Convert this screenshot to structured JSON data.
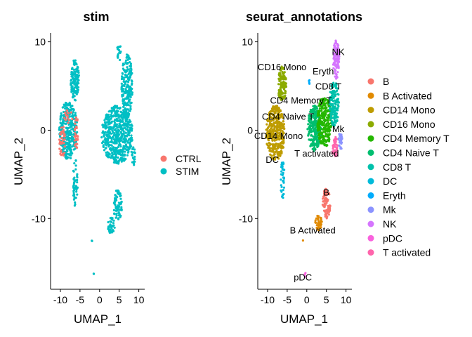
{
  "chart_data": [
    {
      "type": "scatter",
      "title": "stim",
      "xlabel": "UMAP_1",
      "ylabel": "UMAP_2",
      "xlim": [
        -12.5,
        11.5
      ],
      "ylim": [
        -18.0,
        11.0
      ],
      "xticks": [
        -10,
        -5,
        0,
        5,
        10
      ],
      "yticks": [
        -10,
        0,
        10
      ],
      "legend": {
        "position": "right",
        "entries": [
          {
            "label": "CTRL",
            "color": "#F8766D"
          },
          {
            "label": "STIM",
            "color": "#00BFC4"
          }
        ]
      },
      "point_groups": [
        {
          "series": "STIM",
          "color": "#00BFC4",
          "shape": "ellipse",
          "cx": -8,
          "cy": 0,
          "rx": 2.3,
          "ry": 3.3,
          "n": 330
        },
        {
          "series": "STIM",
          "color": "#00BFC4",
          "shape": "ellipse",
          "cx": -6.3,
          "cy": 5.7,
          "rx": 1.1,
          "ry": 2.4,
          "n": 120
        },
        {
          "series": "STIM",
          "color": "#00BFC4",
          "shape": "ellipse",
          "cx": -6.2,
          "cy": -6.0,
          "rx": 0.6,
          "ry": 2.7,
          "n": 50
        },
        {
          "series": "STIM",
          "color": "#00BFC4",
          "shape": "ellipse",
          "cx": 4.5,
          "cy": -0.5,
          "rx": 4.0,
          "ry": 3.3,
          "n": 560
        },
        {
          "series": "STIM",
          "color": "#00BFC4",
          "shape": "ellipse",
          "cx": 7.0,
          "cy": 5.0,
          "rx": 1.4,
          "ry": 3.6,
          "n": 200
        },
        {
          "series": "STIM",
          "color": "#00BFC4",
          "shape": "ellipse",
          "cx": 8.6,
          "cy": -2.8,
          "rx": 0.5,
          "ry": 1.3,
          "n": 20
        },
        {
          "series": "STIM",
          "color": "#00BFC4",
          "shape": "ellipse",
          "cx": 4.6,
          "cy": -8.5,
          "rx": 1.1,
          "ry": 1.8,
          "n": 80
        },
        {
          "series": "STIM",
          "color": "#00BFC4",
          "shape": "ellipse",
          "cx": 3.0,
          "cy": -10.8,
          "rx": 0.9,
          "ry": 0.9,
          "n": 40
        },
        {
          "series": "STIM",
          "color": "#00BFC4",
          "shape": "ellipse",
          "cx": 5.0,
          "cy": 8.8,
          "rx": 0.6,
          "ry": 1.0,
          "n": 20
        },
        {
          "series": "STIM",
          "color": "#00BFC4",
          "shape": "ellipse",
          "cx": -2.0,
          "cy": -12.5,
          "rx": 0.15,
          "ry": 0.2,
          "n": 2
        },
        {
          "series": "STIM",
          "color": "#00BFC4",
          "shape": "ellipse",
          "cx": -1.4,
          "cy": -16.3,
          "rx": 0.15,
          "ry": 0.2,
          "n": 2
        },
        {
          "series": "CTRL",
          "color": "#F8766D",
          "shape": "ellipse",
          "cx": -9.5,
          "cy": -1.3,
          "rx": 0.8,
          "ry": 1.8,
          "n": 40
        },
        {
          "series": "CTRL",
          "color": "#F8766D",
          "shape": "ellipse",
          "cx": -5.9,
          "cy": -0.5,
          "rx": 0.5,
          "ry": 2.2,
          "n": 30
        },
        {
          "series": "CTRL",
          "color": "#F8766D",
          "shape": "ellipse",
          "cx": -8.0,
          "cy": 1.6,
          "rx": 1.2,
          "ry": 0.8,
          "n": 15
        }
      ]
    },
    {
      "type": "scatter",
      "title": "seurat_annotations",
      "xlabel": "UMAP_1",
      "ylabel": "UMAP_2",
      "xlim": [
        -12.5,
        11.5
      ],
      "ylim": [
        -18.0,
        11.0
      ],
      "xticks": [
        -10,
        -5,
        0,
        5,
        10
      ],
      "yticks": [
        -10,
        0,
        10
      ],
      "legend": {
        "position": "right",
        "entries": [
          {
            "label": "B",
            "color": "#F8766D"
          },
          {
            "label": "B Activated",
            "color": "#E18A00"
          },
          {
            "label": "CD14 Mono",
            "color": "#BE9C00"
          },
          {
            "label": "CD16 Mono",
            "color": "#8CAB00"
          },
          {
            "label": "CD4 Memory T",
            "color": "#24B700"
          },
          {
            "label": "CD4 Naive T",
            "color": "#00BE70"
          },
          {
            "label": "CD8 T",
            "color": "#00C1AB"
          },
          {
            "label": "DC",
            "color": "#00BBDA"
          },
          {
            "label": "Eryth",
            "color": "#00ACFC"
          },
          {
            "label": "Mk",
            "color": "#8B93FF"
          },
          {
            "label": "NK",
            "color": "#D575FE"
          },
          {
            "label": "pDC",
            "color": "#F962DD"
          },
          {
            "label": "T activated",
            "color": "#FF65AC"
          }
        ]
      },
      "cluster_labels": [
        {
          "text": "NK",
          "x": 8.0,
          "y": 8.5
        },
        {
          "text": "CD16 Mono",
          "x": -6.3,
          "y": 6.8
        },
        {
          "text": "Eryth",
          "x": 4.2,
          "y": 6.3
        },
        {
          "text": "CD8 T",
          "x": 5.5,
          "y": 4.6
        },
        {
          "text": "CD4 Memory T",
          "x": -1.5,
          "y": 3.0
        },
        {
          "text": "CD4 Naive T",
          "x": -4.8,
          "y": 1.2
        },
        {
          "text": "Mk",
          "x": 8.0,
          "y": -0.2
        },
        {
          "text": "CD14 Mono",
          "x": -7.2,
          "y": -1.0
        },
        {
          "text": "T activated",
          "x": 2.5,
          "y": -3.0
        },
        {
          "text": "DC",
          "x": -8.8,
          "y": -3.7
        },
        {
          "text": "B",
          "x": 5.0,
          "y": -7.4
        },
        {
          "text": "B Activated",
          "x": 1.5,
          "y": -11.7
        },
        {
          "text": "pDC",
          "x": -1.0,
          "y": -17.0
        }
      ],
      "point_groups": [
        {
          "series": "CD14 Mono",
          "color": "#BE9C00",
          "shape": "ellipse",
          "cx": -8.0,
          "cy": -0.3,
          "rx": 2.4,
          "ry": 3.1,
          "n": 360
        },
        {
          "series": "CD16 Mono",
          "color": "#8CAB00",
          "shape": "ellipse",
          "cx": -6.3,
          "cy": 5.2,
          "rx": 1.1,
          "ry": 2.0,
          "n": 120
        },
        {
          "series": "DC",
          "color": "#00BBDA",
          "shape": "ellipse",
          "cx": -6.2,
          "cy": -5.5,
          "rx": 0.5,
          "ry": 2.3,
          "n": 40
        },
        {
          "series": "CD4 Naive T",
          "color": "#00BE70",
          "shape": "ellipse",
          "cx": 2.0,
          "cy": 0.2,
          "rx": 1.8,
          "ry": 2.6,
          "n": 250
        },
        {
          "series": "CD4 Memory T",
          "color": "#24B700",
          "shape": "ellipse",
          "cx": 4.5,
          "cy": 1.0,
          "rx": 1.8,
          "ry": 3.0,
          "n": 250
        },
        {
          "series": "CD8 T",
          "color": "#00C1AB",
          "shape": "ellipse",
          "cx": 7.0,
          "cy": 3.0,
          "rx": 1.2,
          "ry": 2.6,
          "n": 150
        },
        {
          "series": "NK",
          "color": "#D575FE",
          "shape": "ellipse",
          "cx": 7.5,
          "cy": 8.0,
          "rx": 0.8,
          "ry": 2.2,
          "n": 100
        },
        {
          "series": "Mk",
          "color": "#8B93FF",
          "shape": "ellipse",
          "cx": 8.6,
          "cy": -1.2,
          "rx": 0.5,
          "ry": 1.0,
          "n": 25
        },
        {
          "series": "T activated",
          "color": "#FF65AC",
          "shape": "ellipse",
          "cx": 7.2,
          "cy": -2.0,
          "rx": 0.7,
          "ry": 1.3,
          "n": 50
        },
        {
          "series": "Eryth",
          "color": "#00ACFC",
          "shape": "ellipse",
          "cx": 0.6,
          "cy": 5.4,
          "rx": 0.15,
          "ry": 0.3,
          "n": 4
        },
        {
          "series": "B",
          "color": "#F8766D",
          "shape": "ellipse",
          "cx": 5.0,
          "cy": -8.3,
          "rx": 1.0,
          "ry": 1.7,
          "n": 80
        },
        {
          "series": "B Activated",
          "color": "#E18A00",
          "shape": "ellipse",
          "cx": 3.0,
          "cy": -10.5,
          "rx": 0.9,
          "ry": 0.9,
          "n": 40
        },
        {
          "series": "pDC",
          "color": "#F962DD",
          "shape": "ellipse",
          "cx": -0.5,
          "cy": -16.3,
          "rx": 0.2,
          "ry": 0.3,
          "n": 3
        },
        {
          "series": "B Activated",
          "color": "#E18A00",
          "shape": "ellipse",
          "cx": -1.0,
          "cy": -12.5,
          "rx": 0.1,
          "ry": 0.15,
          "n": 1
        }
      ]
    }
  ]
}
